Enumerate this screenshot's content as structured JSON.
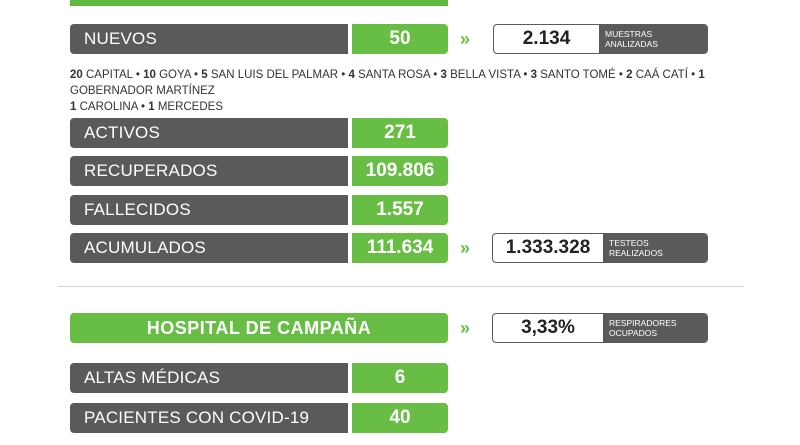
{
  "nuevos": {
    "label": "NUEVOS",
    "value": "50"
  },
  "muestras": {
    "value": "2.134",
    "caption_line1": "MUESTRAS",
    "caption_line2": "ANALIZADAS"
  },
  "towns": [
    {
      "count": "20",
      "name": "CAPITAL"
    },
    {
      "count": "10",
      "name": "GOYA"
    },
    {
      "count": "5",
      "name": "SAN LUIS DEL PALMAR"
    },
    {
      "count": "4",
      "name": "SANTA ROSA"
    },
    {
      "count": "3",
      "name": "BELLA VISTA"
    },
    {
      "count": "3",
      "name": "SANTO TOMÉ"
    },
    {
      "count": "2",
      "name": "CAÁ CATÍ"
    },
    {
      "count": "1",
      "name": "GOBERNADOR MARTÍNEZ"
    },
    {
      "count": "1",
      "name": "CAROLINA"
    },
    {
      "count": "1",
      "name": "MERCEDES"
    }
  ],
  "stats": [
    {
      "label": "ACTIVOS",
      "value": "271"
    },
    {
      "label": "RECUPERADOS",
      "value": "109.806"
    },
    {
      "label": "FALLECIDOS",
      "value": "1.557"
    },
    {
      "label": "ACUMULADOS",
      "value": "111.634"
    }
  ],
  "testeos": {
    "value": "1.333.328",
    "caption_line1": "TESTEOS",
    "caption_line2": "REALIZADOS"
  },
  "arrow_symbol": "»",
  "hospital": {
    "title": "HOSPITAL DE CAMPAÑA"
  },
  "respiradores": {
    "value": "3,33%",
    "caption_line1": "RESPIRADORES",
    "caption_line2": "OCUPADOS"
  },
  "hospital_stats": [
    {
      "label": "ALTAS MÉDICAS",
      "value": "6"
    },
    {
      "label": "PACIENTES CON COVID-19",
      "value": "40"
    }
  ],
  "colors": {
    "green": "#68bd45",
    "gray": "#5a5a5a"
  }
}
